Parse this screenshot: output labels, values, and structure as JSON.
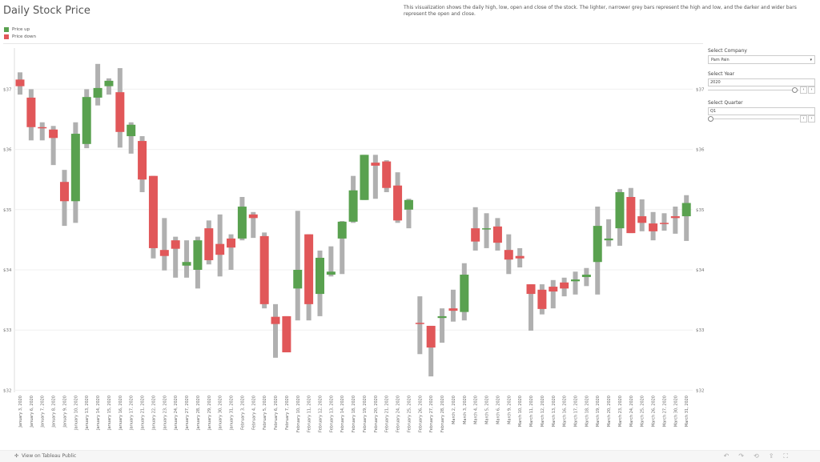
{
  "title": "Daily Stock Price",
  "legend": [
    {
      "label": "Price up",
      "color": "#59a14f"
    },
    {
      "label": "Price down",
      "color": "#e15759"
    }
  ],
  "description": "This visualization shows the daily high, low, open and close of the stock. The lighter, narrower grey bars represent the high and low, and the darker and wider bars represent the open and close.",
  "filters": {
    "company_label": "Select Company",
    "company_value": "Pam Pain",
    "year_label": "Select Year",
    "year_value": "2020",
    "quarter_label": "Select Quarter",
    "quarter_value": "Q1",
    "year_slider_fraction": 0.92,
    "quarter_slider_fraction": 0.0
  },
  "footer": {
    "tableau_link": "View on Tableau Public",
    "icons": [
      "undo-icon",
      "redo-icon",
      "revert-icon",
      "share-icon",
      "fullscreen-icon"
    ]
  },
  "chart_data": {
    "type": "candlestick",
    "ylim": [
      32,
      37.4
    ],
    "yticks": [
      "$32",
      "$33",
      "$34",
      "$35",
      "$36",
      "$37"
    ],
    "ytick_values": [
      32,
      33,
      34,
      35,
      36,
      37
    ],
    "colors": {
      "up": "#59a14f",
      "down": "#e15759",
      "wick": "#b0b0b0"
    },
    "dates": [
      "January 3, 2020",
      "January 6, 2020",
      "January 7, 2020",
      "January 8, 2020",
      "January 9, 2020",
      "January 10, 2020",
      "January 13, 2020",
      "January 14, 2020",
      "January 15, 2020",
      "January 16, 2020",
      "January 17, 2020",
      "January 21, 2020",
      "January 22, 2020",
      "January 23, 2020",
      "January 24, 2020",
      "January 27, 2020",
      "January 28, 2020",
      "January 29, 2020",
      "January 30, 2020",
      "January 31, 2020",
      "February 3, 2020",
      "February 4, 2020",
      "February 5, 2020",
      "February 6, 2020",
      "February 7, 2020",
      "February 10, 2020",
      "February 11, 2020",
      "February 12, 2020",
      "February 13, 2020",
      "February 14, 2020",
      "February 18, 2020",
      "February 19, 2020",
      "February 20, 2020",
      "February 21, 2020",
      "February 24, 2020",
      "February 25, 2020",
      "February 26, 2020",
      "February 27, 2020",
      "February 28, 2020",
      "March 2, 2020",
      "March 3, 2020",
      "March 4, 2020",
      "March 5, 2020",
      "March 6, 2020",
      "March 9, 2020",
      "March 10, 2020",
      "March 11, 2020",
      "March 12, 2020",
      "March 13, 2020",
      "March 16, 2020",
      "March 17, 2020",
      "March 18, 2020",
      "March 19, 2020",
      "March 20, 2020",
      "March 23, 2020",
      "March 24, 2020",
      "March 25, 2020",
      "March 26, 2020",
      "March 27, 2020",
      "March 30, 2020",
      "March 31, 2020"
    ],
    "ohlc": [
      [
        37.16,
        37.28,
        36.91,
        37.05
      ],
      [
        36.86,
        37.0,
        36.15,
        36.37
      ],
      [
        36.37,
        36.45,
        36.15,
        36.35
      ],
      [
        36.33,
        36.39,
        35.74,
        36.19
      ],
      [
        35.46,
        35.66,
        34.73,
        35.14
      ],
      [
        35.14,
        36.45,
        34.78,
        36.26
      ],
      [
        36.09,
        37.0,
        36.02,
        36.87
      ],
      [
        36.86,
        37.42,
        36.73,
        37.02
      ],
      [
        37.05,
        37.18,
        36.91,
        37.14
      ],
      [
        36.95,
        37.35,
        36.03,
        36.29
      ],
      [
        36.22,
        36.45,
        35.93,
        36.41
      ],
      [
        36.14,
        36.22,
        35.29,
        35.5
      ],
      [
        35.56,
        35.56,
        34.19,
        34.36
      ],
      [
        34.33,
        34.86,
        33.99,
        34.23
      ],
      [
        34.49,
        34.55,
        33.87,
        34.35
      ],
      [
        34.07,
        34.49,
        33.87,
        34.13
      ],
      [
        34.0,
        34.55,
        33.69,
        34.49
      ],
      [
        34.69,
        34.82,
        34.09,
        34.16
      ],
      [
        34.43,
        34.92,
        33.89,
        34.25
      ],
      [
        34.52,
        34.59,
        34.0,
        34.37
      ],
      [
        34.52,
        35.21,
        34.49,
        35.05
      ],
      [
        34.92,
        34.96,
        34.53,
        34.86
      ],
      [
        34.56,
        34.62,
        33.36,
        33.43
      ],
      [
        33.22,
        33.43,
        32.54,
        33.1
      ],
      [
        33.23,
        33.23,
        32.63,
        32.63
      ],
      [
        33.69,
        34.98,
        33.16,
        34.0
      ],
      [
        34.59,
        34.59,
        33.16,
        33.43
      ],
      [
        33.6,
        34.32,
        33.23,
        34.2
      ],
      [
        33.92,
        34.39,
        33.89,
        33.97
      ],
      [
        34.52,
        34.81,
        33.93,
        34.8
      ],
      [
        34.8,
        35.56,
        34.78,
        35.32
      ],
      [
        35.16,
        35.91,
        35.16,
        35.91
      ],
      [
        35.78,
        35.91,
        35.18,
        35.73
      ],
      [
        35.8,
        35.82,
        35.29,
        35.36
      ],
      [
        35.4,
        35.62,
        34.78,
        34.82
      ],
      [
        35.0,
        35.18,
        34.69,
        35.16
      ],
      [
        33.12,
        33.56,
        32.6,
        33.1
      ],
      [
        33.07,
        33.07,
        32.23,
        32.71
      ],
      [
        33.2,
        33.36,
        32.79,
        33.23
      ],
      [
        33.36,
        33.67,
        33.14,
        33.32
      ],
      [
        33.3,
        34.11,
        33.16,
        33.92
      ],
      [
        34.69,
        35.04,
        34.32,
        34.47
      ],
      [
        34.68,
        34.94,
        34.36,
        34.69
      ],
      [
        34.72,
        34.86,
        34.32,
        34.45
      ],
      [
        34.33,
        34.59,
        33.93,
        34.17
      ],
      [
        34.23,
        34.36,
        34.04,
        34.19
      ],
      [
        33.76,
        33.76,
        32.99,
        33.6
      ],
      [
        33.67,
        33.76,
        33.26,
        33.35
      ],
      [
        33.72,
        33.83,
        33.36,
        33.64
      ],
      [
        33.79,
        33.87,
        33.56,
        33.69
      ],
      [
        33.81,
        33.97,
        33.59,
        33.84
      ],
      [
        33.88,
        34.03,
        33.73,
        33.92
      ],
      [
        34.13,
        35.05,
        33.59,
        34.73
      ],
      [
        34.49,
        34.84,
        34.39,
        34.52
      ],
      [
        34.69,
        35.34,
        34.4,
        35.29
      ],
      [
        35.21,
        35.36,
        34.61,
        34.61
      ],
      [
        34.89,
        35.17,
        34.64,
        34.78
      ],
      [
        34.77,
        34.96,
        34.49,
        34.64
      ],
      [
        34.78,
        34.94,
        34.65,
        34.76
      ],
      [
        34.89,
        35.05,
        34.6,
        34.86
      ],
      [
        34.89,
        35.24,
        34.48,
        35.11
      ]
    ]
  }
}
